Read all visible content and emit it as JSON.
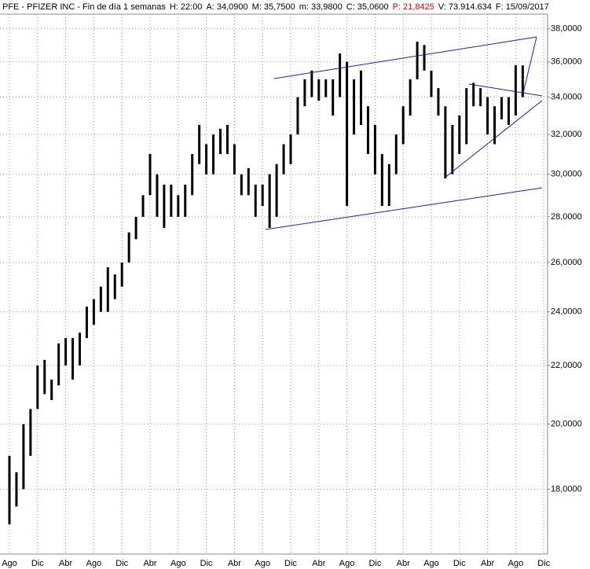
{
  "chart_data": {
    "type": "range-bar",
    "header": [
      "PFE - PFIZER INC - Fin de día 1 semanas",
      "H: 22:00",
      "A: 34,0900",
      "M: 35,7500",
      "m: 33,9800",
      "C: 35,0600",
      "P: 21,8425",
      "V: 73.914.634",
      "F: 15/09/2017"
    ],
    "categories": [
      "Ago",
      null,
      null,
      null,
      "Dic",
      null,
      null,
      null,
      "Abr",
      null,
      null,
      null,
      "Ago",
      null,
      null,
      null,
      "Dic",
      null,
      null,
      null,
      "Abr",
      null,
      null,
      null,
      "Ago",
      null,
      null,
      null,
      "Dic",
      null,
      null,
      null,
      "Abr",
      null,
      null,
      null,
      "Ago",
      null,
      null,
      null,
      "Dic",
      null,
      null,
      null,
      "Abr",
      null,
      null,
      null,
      "Ago",
      null,
      null,
      null,
      "Dic",
      null,
      null,
      null,
      "Abr",
      null,
      null,
      null,
      "Ago",
      null,
      null,
      null,
      "Dic",
      null,
      null,
      null,
      "Abr",
      null,
      null,
      null,
      "Ago",
      null,
      null,
      null,
      "Dic"
    ],
    "high": [
      19,
      18.5,
      20,
      20.5,
      22,
      22.2,
      21.5,
      22.8,
      23,
      23,
      23.2,
      24.2,
      24.5,
      25,
      25.8,
      25.5,
      26,
      27.3,
      28,
      29,
      31,
      30,
      29.5,
      29.5,
      29,
      29.5,
      31,
      32.5,
      31.5,
      32,
      32.3,
      32.5,
      31.5,
      30,
      30.3,
      29.5,
      29.5,
      30,
      30.5,
      31.5,
      32,
      34,
      35,
      35.5,
      35,
      35,
      35,
      36.5,
      36,
      35,
      35.5,
      33.5,
      32.5,
      31,
      30.5,
      32,
      33.5,
      35,
      37.2,
      37,
      35.5,
      34.5,
      33.5,
      32.5,
      33,
      34.5,
      34.8,
      34.5,
      34,
      33.5,
      34,
      34,
      35.8,
      35.8,
      null,
      null,
      null
    ],
    "low": [
      17,
      17.5,
      18,
      19,
      20.5,
      21,
      20.8,
      21.3,
      22,
      21.5,
      22,
      23,
      23.5,
      24,
      24,
      24.5,
      25,
      26,
      27,
      28,
      29,
      28,
      27.5,
      28,
      28,
      28,
      29,
      30.5,
      30,
      30,
      31,
      31,
      30,
      29,
      29,
      28,
      28.5,
      27.5,
      28,
      30,
      30.5,
      32,
      33.5,
      34,
      33.8,
      34,
      33,
      34,
      28.5,
      32,
      32.5,
      31,
      30,
      28.5,
      28.5,
      30,
      31.5,
      33,
      35,
      35.5,
      34,
      33,
      29.8,
      30,
      31,
      31.5,
      33.5,
      33.5,
      32,
      31.5,
      32.8,
      32.5,
      33,
      34,
      null,
      null,
      null
    ],
    "color": "#000000",
    "log_scale": true,
    "grid": true,
    "ylim": [
      16.2,
      38.9
    ],
    "yticks": [
      {
        "value": 18,
        "label": "18,0000"
      },
      {
        "value": 20,
        "label": "20,0000"
      },
      {
        "value": 22,
        "label": "22,0000"
      },
      {
        "value": 24,
        "label": "24,0000"
      },
      {
        "value": 26,
        "label": "26,0000"
      },
      {
        "value": 28,
        "label": "28,0000"
      },
      {
        "value": 30,
        "label": "30,0000"
      },
      {
        "value": 32,
        "label": "32,0000"
      },
      {
        "value": 34,
        "label": "34,0000"
      },
      {
        "value": 36,
        "label": "36,0000"
      },
      {
        "value": 38,
        "label": "38,0000"
      }
    ]
  }
}
